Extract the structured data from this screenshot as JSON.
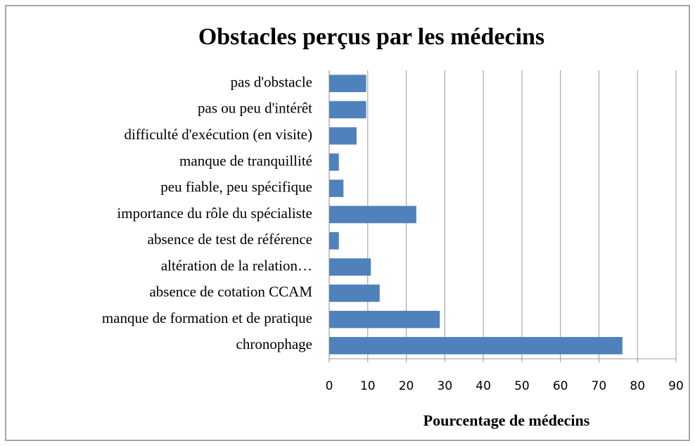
{
  "chart_data": {
    "type": "bar",
    "orientation": "horizontal",
    "title": "Obstacles perçus par les médecins",
    "x_label": "Pourcentage de médecins",
    "categories": [
      "pas d'obstacle",
      "pas ou peu d'intérêt",
      "difficulté d'exécution (en visite)",
      "manque de tranquillité",
      "peu fiable, peu spécifique",
      "importance du rôle du spécialiste",
      "absence de test de référence",
      "altération de la relation…",
      "absence de cotation CCAM",
      "manque de formation et de pratique",
      "chronophage"
    ],
    "values": [
      9.6,
      9.6,
      7.1,
      2.5,
      3.7,
      22.6,
      2.5,
      10.8,
      13.1,
      28.7,
      76.1
    ],
    "color": "#4f81bd",
    "xlim": [
      0,
      90
    ],
    "xticks": [
      0,
      10,
      20,
      30,
      40,
      50,
      60,
      70,
      80,
      90
    ],
    "grid": true
  }
}
